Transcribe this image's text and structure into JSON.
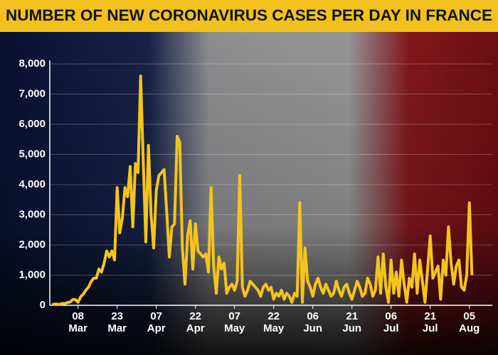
{
  "chart_data": {
    "type": "line",
    "title": "NUMBER OF NEW CORONAVIRUS CASES PER DAY IN FRANCE",
    "x": [
      "27 Feb",
      "28 Feb",
      "29 Feb",
      "01 Mar",
      "02 Mar",
      "03 Mar",
      "04 Mar",
      "05 Mar",
      "06 Mar",
      "07 Mar",
      "08 Mar",
      "09 Mar",
      "10 Mar",
      "11 Mar",
      "12 Mar",
      "13 Mar",
      "14 Mar",
      "15 Mar",
      "16 Mar",
      "17 Mar",
      "18 Mar",
      "19 Mar",
      "20 Mar",
      "21 Mar",
      "22 Mar",
      "23 Mar",
      "24 Mar",
      "25 Mar",
      "26 Mar",
      "27 Mar",
      "28 Mar",
      "29 Mar",
      "30 Mar",
      "31 Mar",
      "01 Apr",
      "02 Apr",
      "03 Apr",
      "04 Apr",
      "05 Apr",
      "06 Apr",
      "07 Apr",
      "08 Apr",
      "09 Apr",
      "10 Apr",
      "11 Apr",
      "12 Apr",
      "13 Apr",
      "14 Apr",
      "15 Apr",
      "16 Apr",
      "17 Apr",
      "18 Apr",
      "19 Apr",
      "20 Apr",
      "21 Apr",
      "22 Apr",
      "23 Apr",
      "24 Apr",
      "25 Apr",
      "26 Apr",
      "27 Apr",
      "28 Apr",
      "29 Apr",
      "30 Apr",
      "01 May",
      "02 May",
      "03 May",
      "04 May",
      "05 May",
      "06 May",
      "07 May",
      "08 May",
      "09 May",
      "10 May",
      "11 May",
      "12 May",
      "13 May",
      "14 May",
      "15 May",
      "16 May",
      "17 May",
      "18 May",
      "19 May",
      "20 May",
      "21 May",
      "22 May",
      "23 May",
      "24 May",
      "25 May",
      "26 May",
      "27 May",
      "28 May",
      "29 May",
      "30 May",
      "31 May",
      "01 Jun",
      "02 Jun",
      "03 Jun",
      "04 Jun",
      "05 Jun",
      "06 Jun",
      "07 Jun",
      "08 Jun",
      "09 Jun",
      "10 Jun",
      "11 Jun",
      "12 Jun",
      "13 Jun",
      "14 Jun",
      "15 Jun",
      "16 Jun",
      "17 Jun",
      "18 Jun",
      "19 Jun",
      "20 Jun",
      "21 Jun",
      "22 Jun",
      "23 Jun",
      "24 Jun",
      "25 Jun",
      "26 Jun",
      "27 Jun",
      "28 Jun",
      "29 Jun",
      "30 Jun",
      "01 Jul",
      "02 Jul",
      "03 Jul",
      "04 Jul",
      "05 Jul",
      "06 Jul",
      "07 Jul",
      "08 Jul",
      "09 Jul",
      "10 Jul",
      "11 Jul",
      "12 Jul",
      "13 Jul",
      "14 Jul",
      "15 Jul",
      "16 Jul",
      "17 Jul",
      "18 Jul",
      "19 Jul",
      "20 Jul",
      "21 Jul",
      "22 Jul",
      "23 Jul",
      "24 Jul",
      "25 Jul",
      "26 Jul",
      "27 Jul",
      "28 Jul",
      "29 Jul",
      "30 Jul",
      "31 Jul",
      "01 Aug",
      "02 Aug",
      "03 Aug",
      "04 Aug",
      "05 Aug",
      "06 Aug"
    ],
    "series": [
      {
        "color": "#f5c41c",
        "values": [
          20,
          40,
          40,
          30,
          60,
          60,
          90,
          110,
          190,
          190,
          100,
          280,
          370,
          500,
          600,
          780,
          900,
          900,
          1200,
          1100,
          1400,
          1800,
          1600,
          1800,
          1500,
          3900,
          2400,
          2900,
          3900,
          3600,
          4600,
          2600,
          4700,
          4400,
          7600,
          4800,
          2100,
          5300,
          3000,
          1900,
          3800,
          4300,
          4400,
          4500,
          3100,
          1600,
          2600,
          2700,
          5600,
          5400,
          1900,
          700,
          2300,
          2800,
          1200,
          2700,
          1800,
          1700,
          1600,
          1700,
          1100,
          3900,
          1300,
          400,
          1600,
          1200,
          1400,
          400,
          600,
          700,
          500,
          800,
          4300,
          600,
          300,
          500,
          800,
          700,
          600,
          500,
          300,
          600,
          700,
          500,
          600,
          200,
          400,
          300,
          500,
          200,
          400,
          300,
          100,
          400,
          300,
          3400,
          100,
          1900,
          800,
          600,
          300,
          700,
          900,
          600,
          400,
          700,
          500,
          300,
          400,
          800,
          500,
          300,
          600,
          700,
          400,
          200,
          500,
          800,
          600,
          300,
          400,
          900,
          700,
          300,
          500,
          1600,
          400,
          1700,
          600,
          100,
          1500,
          400,
          1100,
          300,
          1500,
          700,
          100,
          900,
          600,
          1700,
          400,
          1500,
          800,
          100,
          1200,
          2300,
          900,
          1100,
          1300,
          200,
          1500,
          1000,
          2600,
          1400,
          700,
          1300,
          1500,
          600,
          500,
          1000,
          3400,
          1000
        ]
      }
    ],
    "ylim": [
      0,
      8000
    ],
    "yticks": [
      0,
      {
        "value": 1000,
        "label": "1,000"
      },
      {
        "value": 2000,
        "label": "2,000"
      },
      {
        "value": 3000,
        "label": "3,000"
      },
      {
        "value": 4000,
        "label": "4,000"
      },
      {
        "value": 5000,
        "label": "5,000"
      },
      {
        "value": 6000,
        "label": "6,000"
      },
      {
        "value": 7000,
        "label": "7,000"
      },
      {
        "value": 8000,
        "label": "8,000"
      }
    ],
    "xticks": [
      "08 Mar",
      "23 Mar",
      "07 Apr",
      "22 Apr",
      "07 May",
      "22 May",
      "06 Jun",
      "21 Jun",
      "06 Jul",
      "21 Jul",
      "05 Aug"
    ],
    "grid": true
  }
}
